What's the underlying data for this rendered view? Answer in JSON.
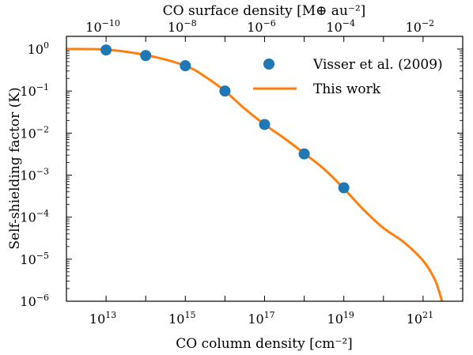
{
  "chart_data": {
    "type": "scatter",
    "x_scale": "log",
    "y_scale": "log",
    "xlabel": "CO column density [cm⁻²]",
    "ylabel": "Self-shielding factor (K)",
    "top_axis_label": "CO surface density [M⊕ au⁻²]",
    "xlim": [
      1000000000000.0,
      1e+22
    ],
    "ylim": [
      1e-06,
      2
    ],
    "x_tick_labels": [
      {
        "value": 10000000000000.0,
        "base": "10",
        "exp": "13"
      },
      {
        "value": 1000000000000000.0,
        "base": "10",
        "exp": "15"
      },
      {
        "value": 1e+17,
        "base": "10",
        "exp": "17"
      },
      {
        "value": 1e+19,
        "base": "10",
        "exp": "19"
      },
      {
        "value": 1e+21,
        "base": "10",
        "exp": "21"
      }
    ],
    "y_tick_labels": [
      {
        "value": 1,
        "base": "10",
        "exp": "0"
      },
      {
        "value": 0.1,
        "base": "10",
        "exp": "−1"
      },
      {
        "value": 0.01,
        "base": "10",
        "exp": "−2"
      },
      {
        "value": 0.001,
        "base": "10",
        "exp": "−3"
      },
      {
        "value": 0.0001,
        "base": "10",
        "exp": "−4"
      },
      {
        "value": 1e-05,
        "base": "10",
        "exp": "−5"
      },
      {
        "value": 1e-06,
        "base": "10",
        "exp": "−6"
      }
    ],
    "top_tick_labels": [
      {
        "column_density": 10000000000000.0,
        "base": "10",
        "exp": "−10"
      },
      {
        "column_density": 1000000000000000.0,
        "base": "10",
        "exp": "−8"
      },
      {
        "column_density": 1e+17,
        "base": "10",
        "exp": "−6"
      },
      {
        "column_density": 1e+19,
        "base": "10",
        "exp": "−4"
      },
      {
        "column_density": 1e+21,
        "base": "10",
        "exp": "−2"
      }
    ],
    "series": [
      {
        "name": "Visser et al. (2009)",
        "kind": "scatter",
        "color": "#1f77b4",
        "x": [
          10000000000000.0,
          100000000000000.0,
          1000000000000000.0,
          1e+16,
          1e+17,
          1e+18,
          1e+19
        ],
        "y": [
          0.95,
          0.7,
          0.4,
          0.1,
          0.016,
          0.0032,
          0.0005
        ]
      },
      {
        "name": "This work",
        "kind": "line",
        "color": "#ff7f0e",
        "x": [
          1000000000000.0,
          10000000000000.0,
          100000000000000.0,
          1000000000000000.0,
          3160000000000000.0,
          1e+16,
          3.16e+16,
          1e+17,
          3.16e+17,
          1e+18,
          3.16e+18,
          1e+19,
          3.16e+19,
          1e+20,
          3.16e+20,
          1e+21,
          2e+21,
          3e+21
        ],
        "y": [
          1.0,
          0.97,
          0.72,
          0.4,
          0.22,
          0.1,
          0.038,
          0.016,
          0.0075,
          0.0033,
          0.0014,
          0.00048,
          0.00015,
          5.5e-05,
          2.6e-05,
          9.2e-06,
          3.2e-06,
          1e-06
        ]
      }
    ],
    "legend": {
      "position": "top-right"
    }
  }
}
